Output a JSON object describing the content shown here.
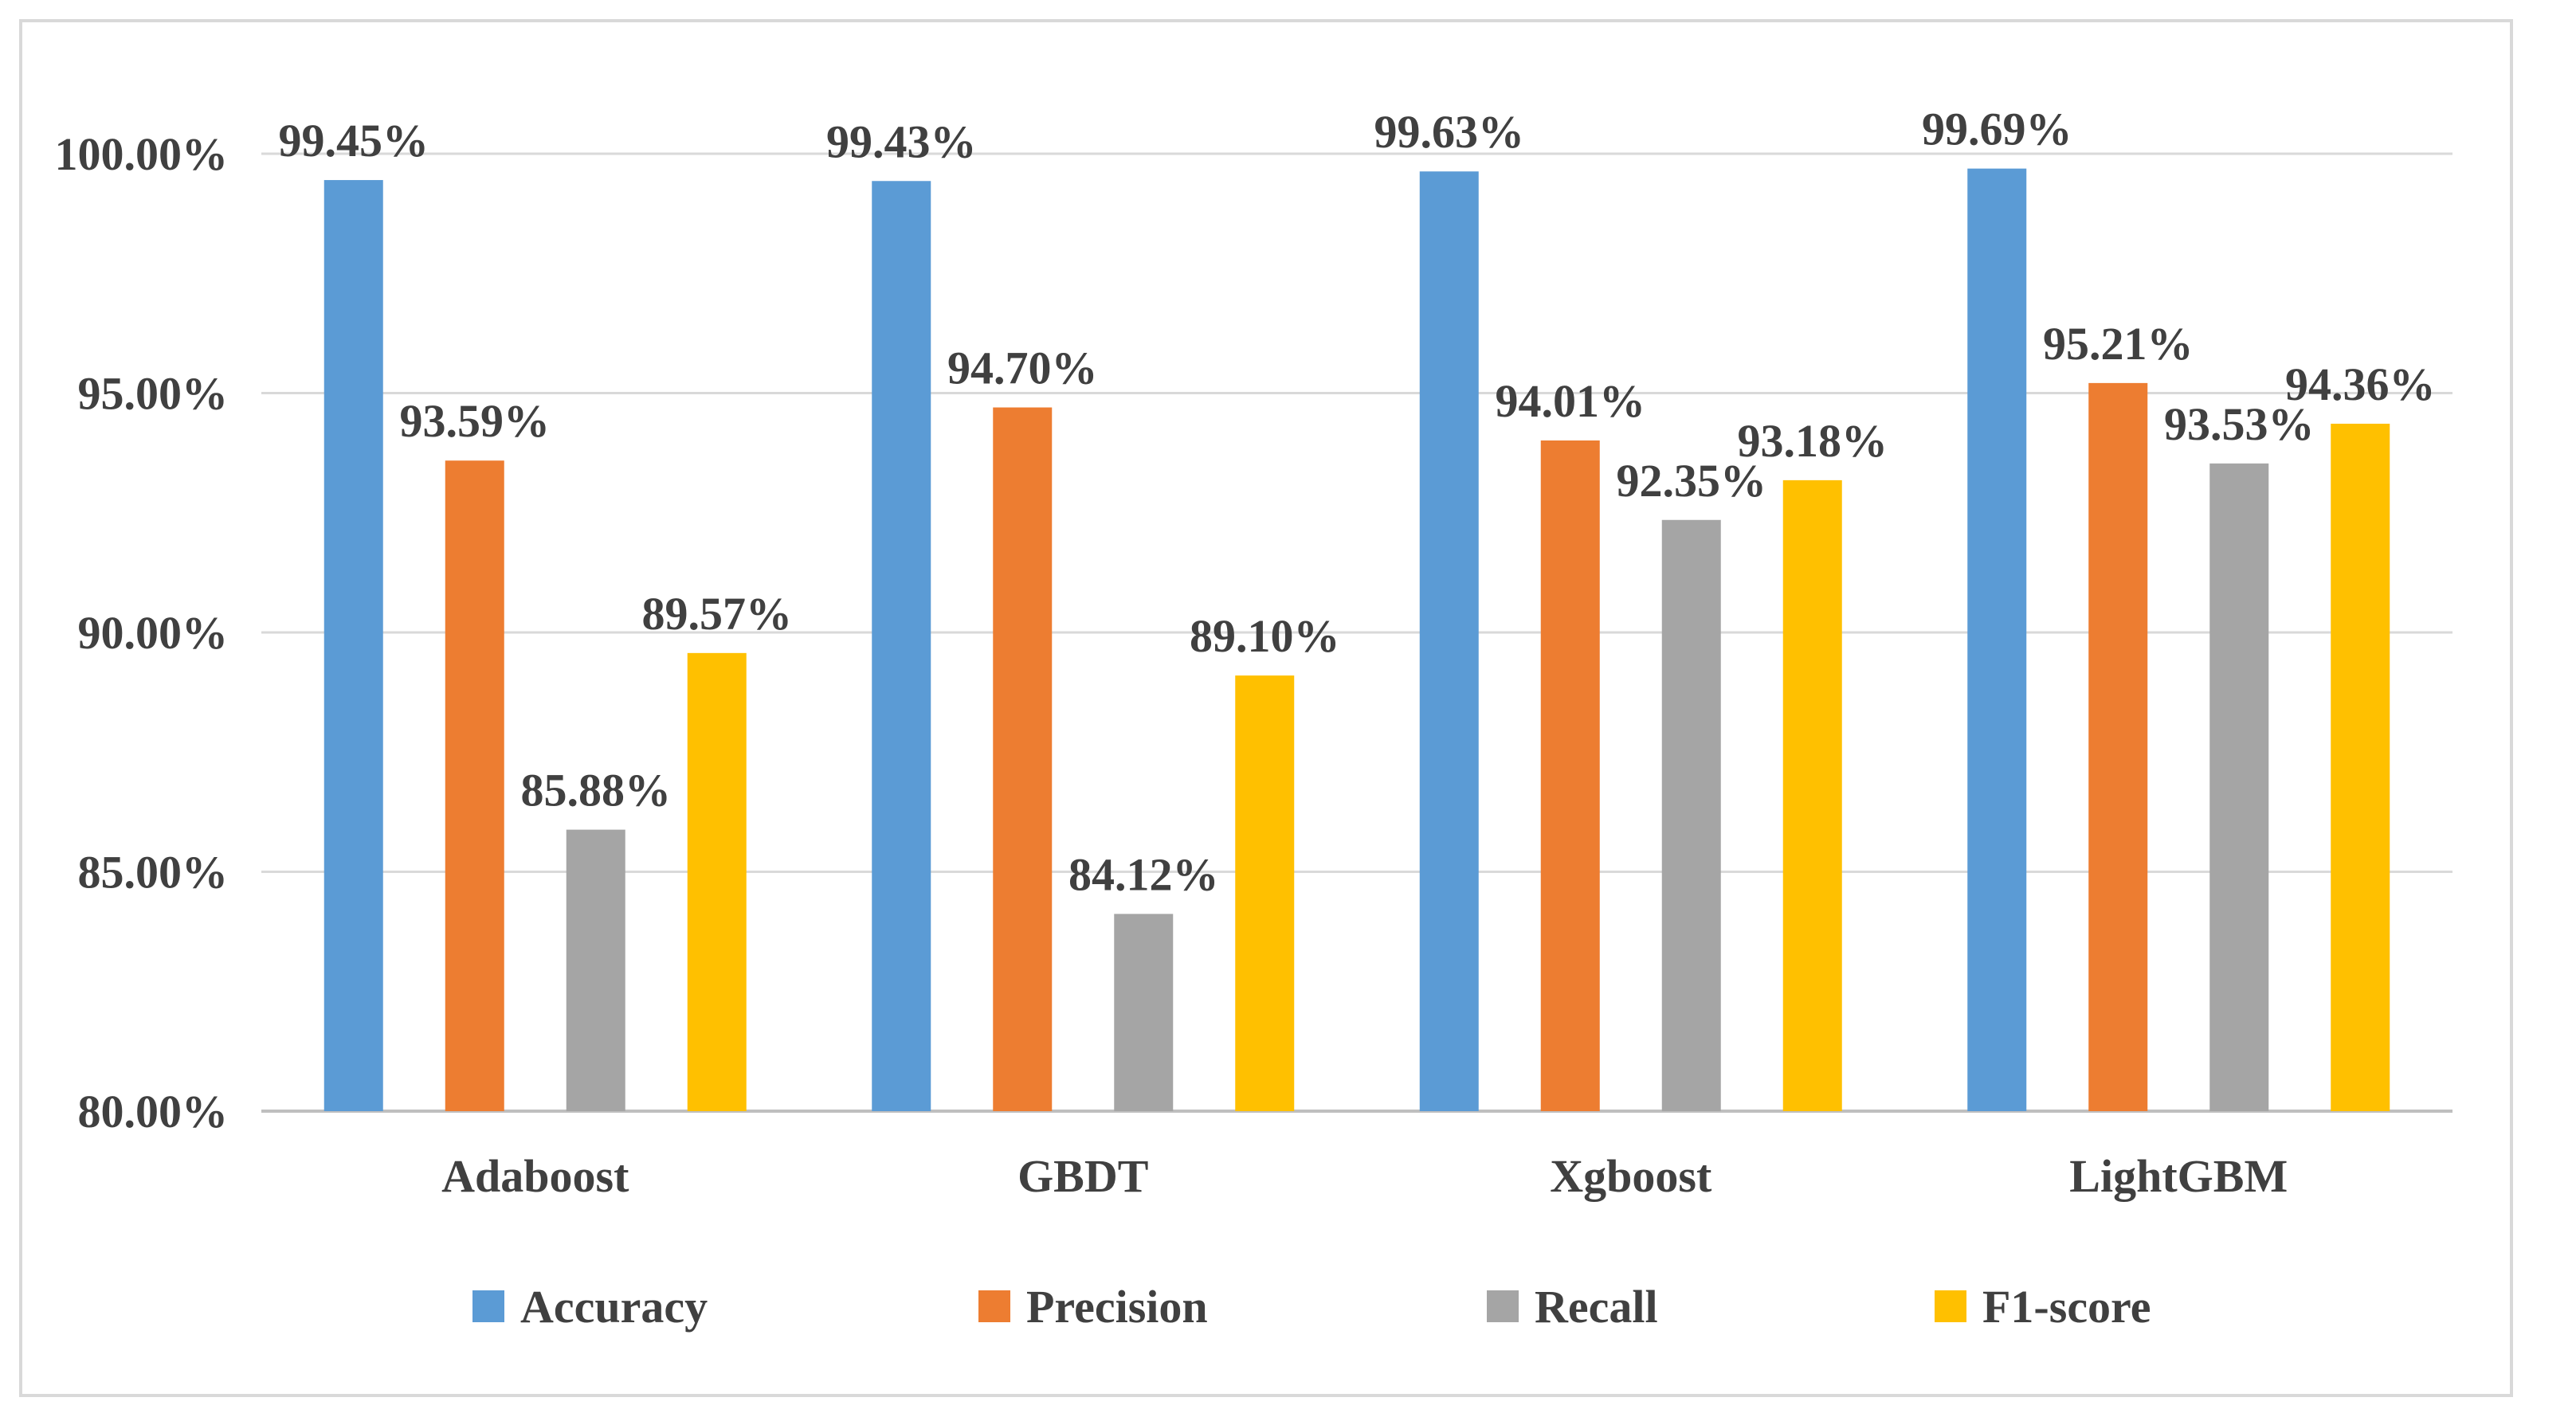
{
  "chart_data": {
    "type": "bar",
    "title": "",
    "xlabel": "",
    "ylabel": "",
    "categories": [
      "Adaboost",
      "GBDT",
      "Xgboost",
      "LightGBM"
    ],
    "series": [
      {
        "name": "Accuracy",
        "color": "#5B9BD5",
        "values": [
          99.45,
          99.43,
          99.63,
          99.69
        ],
        "labels": [
          "99.45%",
          "99.43%",
          "99.63%",
          "99.69%"
        ]
      },
      {
        "name": "Precision",
        "color": "#ED7D31",
        "values": [
          93.59,
          94.7,
          94.01,
          95.21
        ],
        "labels": [
          "93.59%",
          "94.70%",
          "94.01%",
          "95.21%"
        ]
      },
      {
        "name": "Recall",
        "color": "#A5A5A5",
        "values": [
          85.88,
          84.12,
          92.35,
          93.53
        ],
        "labels": [
          "85.88%",
          "84.12%",
          "92.35%",
          "93.53%"
        ]
      },
      {
        "name": "F1-score",
        "color": "#FFC000",
        "values": [
          89.57,
          89.1,
          93.18,
          94.36
        ],
        "labels": [
          "89.57%",
          "89.10%",
          "93.18%",
          "94.36%"
        ]
      }
    ],
    "ylim": [
      80,
      100
    ],
    "yticks": [
      80,
      85,
      90,
      95,
      100
    ],
    "ytick_labels": [
      "80.00%",
      "85.00%",
      "90.00%",
      "95.00%",
      "100.00%"
    ],
    "grid": true,
    "legend": "bottom"
  }
}
